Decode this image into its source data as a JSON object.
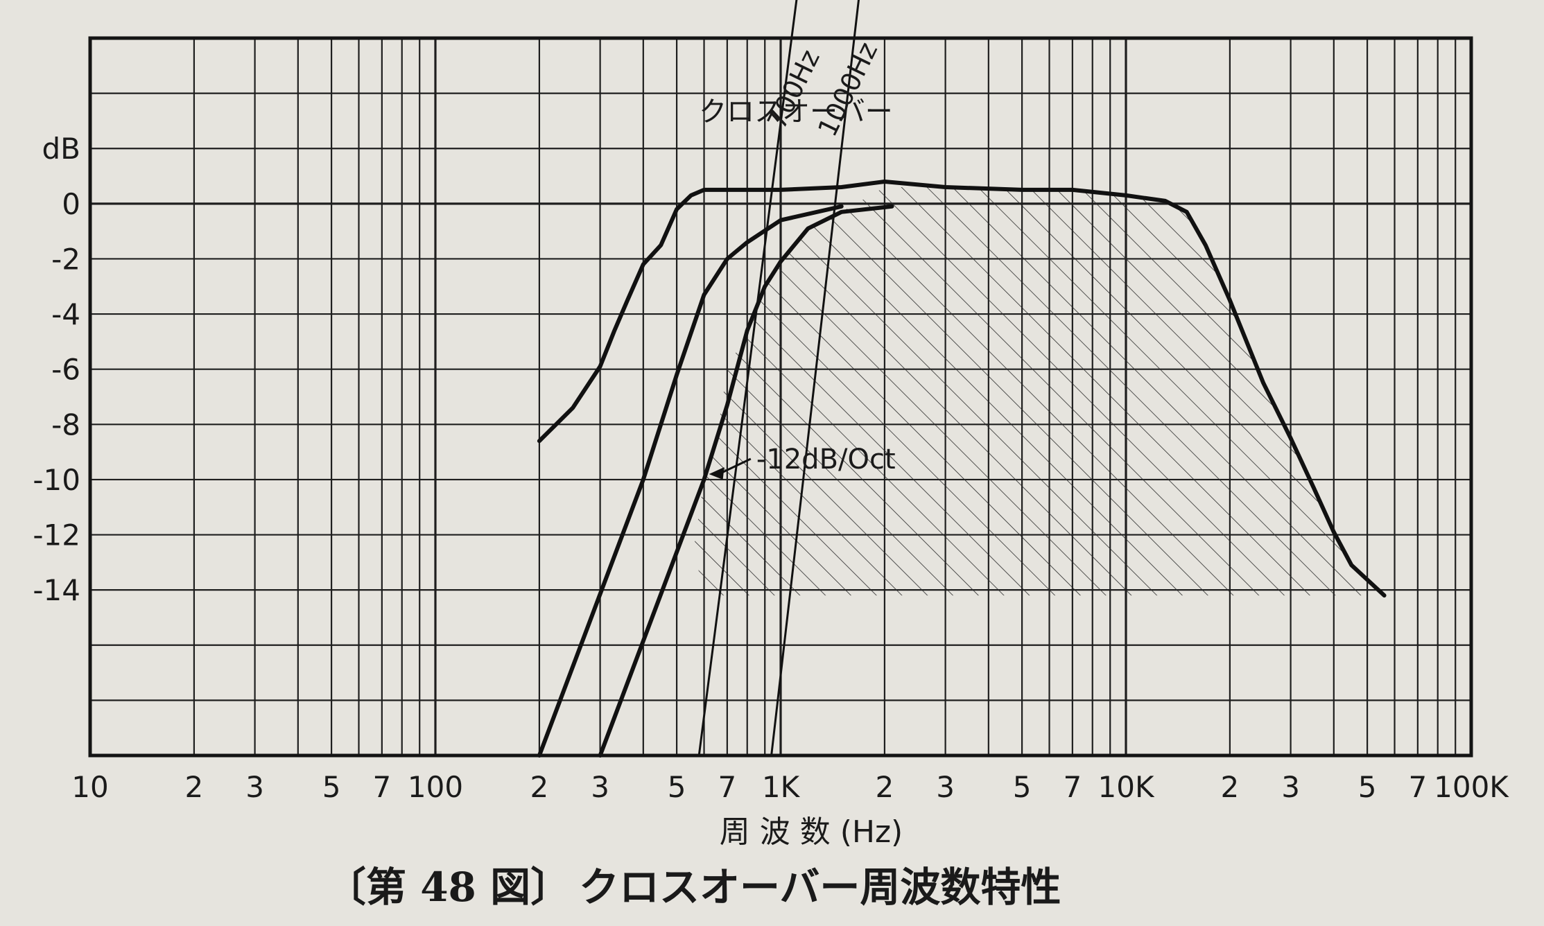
{
  "caption": {
    "figure_label": "〔第 48 図〕",
    "title": "クロスオーバー周波数特性"
  },
  "chart_data": {
    "type": "line",
    "title": "クロスオーバー周波数特性",
    "xlabel": "周 波 数 (Hz)",
    "ylabel": "dB",
    "x_scale": "log",
    "xlim": [
      10,
      100000
    ],
    "ylim": [
      -20,
      6
    ],
    "grid": true,
    "x_tick_labels": [
      {
        "value": 10,
        "label": "10"
      },
      {
        "value": 20,
        "label": "2"
      },
      {
        "value": 30,
        "label": "3"
      },
      {
        "value": 50,
        "label": "5"
      },
      {
        "value": 70,
        "label": "7"
      },
      {
        "value": 100,
        "label": "100"
      },
      {
        "value": 200,
        "label": "2"
      },
      {
        "value": 300,
        "label": "3"
      },
      {
        "value": 500,
        "label": "5"
      },
      {
        "value": 700,
        "label": "7"
      },
      {
        "value": 1000,
        "label": "1K"
      },
      {
        "value": 2000,
        "label": "2"
      },
      {
        "value": 3000,
        "label": "3"
      },
      {
        "value": 5000,
        "label": "5"
      },
      {
        "value": 7000,
        "label": "7"
      },
      {
        "value": 10000,
        "label": "10K"
      },
      {
        "value": 20000,
        "label": "2"
      },
      {
        "value": 30000,
        "label": "3"
      },
      {
        "value": 50000,
        "label": "5"
      },
      {
        "value": 70000,
        "label": "7"
      },
      {
        "value": 100000,
        "label": "100K"
      }
    ],
    "y_tick_labels": [
      {
        "value": 2,
        "label": "dB"
      },
      {
        "value": 0,
        "label": "0"
      },
      {
        "value": -2,
        "label": "-2"
      },
      {
        "value": -4,
        "label": "-4"
      },
      {
        "value": -6,
        "label": "-6"
      },
      {
        "value": -8,
        "label": "-8"
      },
      {
        "value": -10,
        "label": "-10"
      },
      {
        "value": -12,
        "label": "-12"
      },
      {
        "value": -14,
        "label": "-14"
      }
    ],
    "series": [
      {
        "style": "thick",
        "points": [
          [
            200,
            -8.6
          ],
          [
            250,
            -7.4
          ],
          [
            300,
            -5.9
          ],
          [
            330,
            -4.6
          ],
          [
            360,
            -3.5
          ],
          [
            400,
            -2.2
          ],
          [
            450,
            -1.5
          ],
          [
            500,
            -0.2
          ],
          [
            550,
            0.3
          ],
          [
            600,
            0.5
          ],
          [
            800,
            0.5
          ],
          [
            1000,
            0.5
          ],
          [
            1500,
            0.6
          ],
          [
            2000,
            0.8
          ],
          [
            3000,
            0.6
          ],
          [
            5000,
            0.5
          ],
          [
            7000,
            0.5
          ],
          [
            10000,
            0.3
          ],
          [
            13000,
            0.1
          ],
          [
            15000,
            -0.3
          ],
          [
            17000,
            -1.5
          ],
          [
            20000,
            -3.5
          ],
          [
            25000,
            -6.5
          ],
          [
            30000,
            -8.5
          ],
          [
            35000,
            -10.3
          ],
          [
            40000,
            -11.9
          ],
          [
            45000,
            -13.1
          ],
          [
            56000,
            -14.2
          ]
        ]
      },
      {
        "style": "thick",
        "points": [
          [
            200,
            -20
          ],
          [
            400,
            -10
          ],
          [
            500,
            -6.2
          ],
          [
            600,
            -3.3
          ],
          [
            700,
            -2.0
          ],
          [
            800,
            -1.4
          ],
          [
            1000,
            -0.6
          ],
          [
            1500,
            -0.1
          ]
        ]
      },
      {
        "style": "thick",
        "points": [
          [
            300,
            -20
          ],
          [
            600,
            -10
          ],
          [
            700,
            -7.3
          ],
          [
            800,
            -4.6
          ],
          [
            900,
            -3.0
          ],
          [
            1000,
            -2.1
          ],
          [
            1200,
            -0.9
          ],
          [
            1500,
            -0.3
          ],
          [
            2100,
            -0.1
          ]
        ]
      },
      {
        "style": "thin",
        "points": [
          [
            580,
            -20
          ],
          [
            1500,
            20
          ]
        ]
      },
      {
        "style": "thin",
        "points": [
          [
            940,
            -20
          ],
          [
            2200,
            20
          ]
        ]
      }
    ],
    "shaded_region": {
      "pattern": "diagonal hatch",
      "bottom_db": -14.2,
      "boundary": [
        [
          700,
          -6
        ],
        [
          800,
          -4.6
        ],
        [
          900,
          -3.0
        ],
        [
          1000,
          -2.1
        ],
        [
          1200,
          -0.9
        ],
        [
          1500,
          -0.3
        ],
        [
          2000,
          0.6
        ],
        [
          3000,
          0.6
        ],
        [
          5000,
          0.5
        ],
        [
          7000,
          0.5
        ],
        [
          10000,
          0.3
        ],
        [
          13000,
          0.1
        ],
        [
          15000,
          -0.3
        ],
        [
          17000,
          -1.5
        ],
        [
          20000,
          -3.5
        ],
        [
          25000,
          -6.5
        ],
        [
          30000,
          -8.5
        ],
        [
          35000,
          -10.3
        ],
        [
          40000,
          -11.9
        ],
        [
          45000,
          -13.1
        ],
        [
          53000,
          -14.2
        ],
        [
          600,
          -14.2
        ],
        [
          560,
          -12.5
        ],
        [
          600,
          -10
        ],
        [
          650,
          -8.6
        ]
      ]
    },
    "annotations": [
      {
        "text": "クロスオーバー",
        "x": 580,
        "y": 3.0
      },
      {
        "text": "700Hz",
        "x": 1150,
        "y": 4.0,
        "angle": -64
      },
      {
        "text": "1000Hz",
        "x": 1650,
        "y": 4.0,
        "angle": -64
      },
      {
        "text": "-12dB/Oct",
        "x": 850,
        "y": -9.6,
        "arrow_to": [
          620,
          -9.8
        ]
      }
    ]
  }
}
